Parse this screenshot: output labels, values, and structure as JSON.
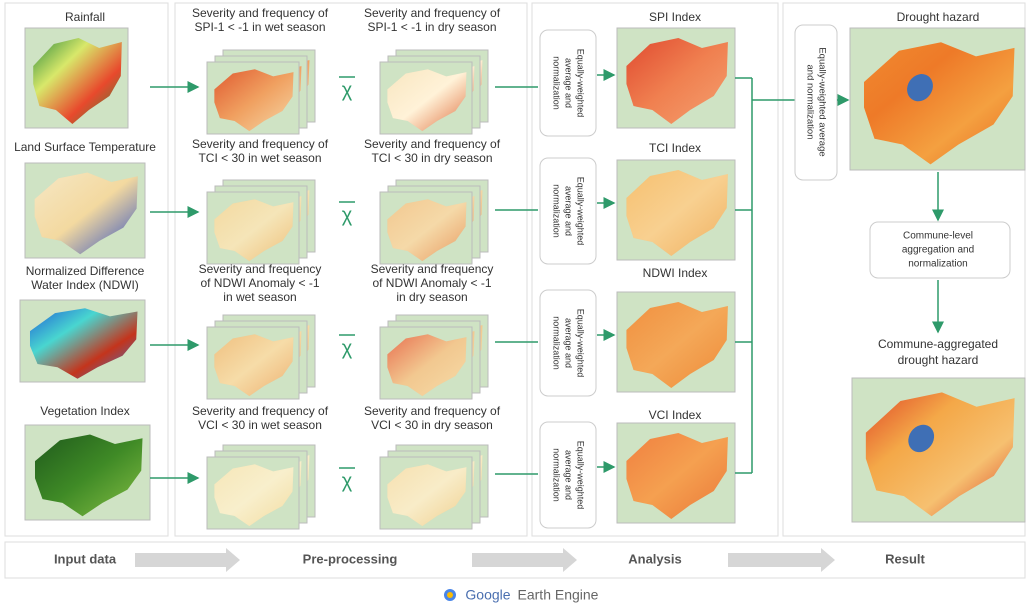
{
  "inputs": [
    {
      "lines": [
        "Rainfall"
      ]
    },
    {
      "lines": [
        "Land Surface Temperature"
      ]
    },
    {
      "lines": [
        "Normalized Difference",
        "Water Index (NDWI)"
      ]
    },
    {
      "lines": [
        "Vegetation Index"
      ]
    }
  ],
  "preprocessing": [
    {
      "wet": [
        "Severity and frequency of",
        "SPI-1 < -1 in wet season"
      ],
      "dry": [
        "Severity and frequency of",
        "SPI-1 < -1 in dry season"
      ],
      "operator": "χ"
    },
    {
      "wet": [
        "Severity and frequency of",
        "TCI < 30 in wet season"
      ],
      "dry": [
        "Severity and frequency of",
        "TCI < 30 in dry season"
      ],
      "operator": "χ"
    },
    {
      "wet": [
        "Severity and frequency",
        "of NDWI Anomaly < -1",
        "in wet season"
      ],
      "dry": [
        "Severity and frequency",
        "of NDWI Anomaly < -1",
        "in dry season"
      ],
      "operator": "χ"
    },
    {
      "wet": [
        "Severity and frequency of",
        "VCI < 30 in wet season"
      ],
      "dry": [
        "Severity and frequency of",
        "VCI < 30 in dry season"
      ],
      "operator": "χ"
    }
  ],
  "analysis": [
    {
      "method": [
        "Equally-weighted",
        "average and",
        "normalization"
      ],
      "title": "SPI Index"
    },
    {
      "method": [
        "Equally-weighted",
        "average and",
        "normalization"
      ],
      "title": "TCI Index"
    },
    {
      "method": [
        "Equally-weighted",
        "average and",
        "normalization"
      ],
      "title": "NDWI Index"
    },
    {
      "method": [
        "Equally-weighted",
        "average and",
        "normalization"
      ],
      "title": "VCI Index"
    }
  ],
  "result": {
    "method": [
      "Equally-weighted average",
      "and normalization"
    ],
    "title": "Drought hazard",
    "aggregation": [
      "Commune-level",
      "aggregation and",
      "normalization"
    ],
    "final_title": [
      "Commune-aggregated",
      "drought hazard"
    ]
  },
  "stages": [
    "Input data",
    "Pre-processing",
    "Analysis",
    "Result"
  ],
  "footer": {
    "brand": "Google",
    "product": "Earth Engine"
  }
}
